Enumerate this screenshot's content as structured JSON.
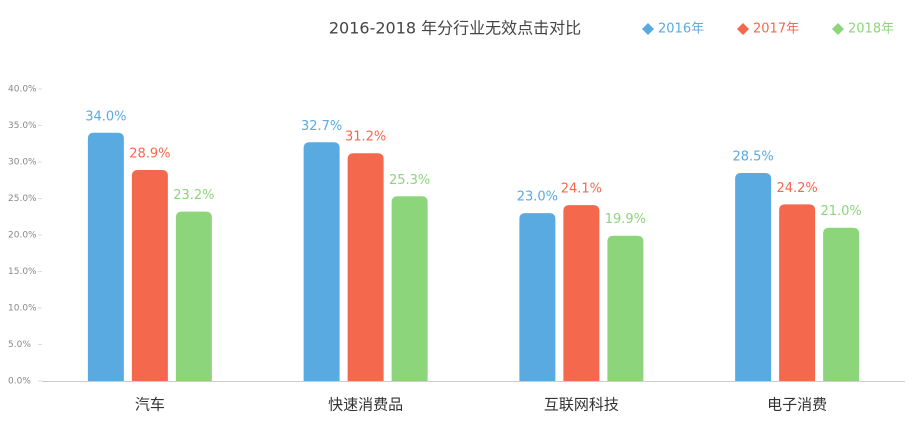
{
  "chart_data": {
    "type": "bar",
    "title": "2016-2018 年分行业无效点击对比",
    "categories": [
      "汽车",
      "快速消费品",
      "互联网科技",
      "电子消费"
    ],
    "series": [
      {
        "name": "2016年",
        "color": "#5aaae2",
        "values": [
          34.0,
          32.7,
          23.0,
          28.5
        ],
        "value_labels": [
          "34.0%",
          "32.7%",
          "23.0%",
          "28.5%"
        ]
      },
      {
        "name": "2017年",
        "color": "#f4694d",
        "values": [
          28.9,
          31.2,
          24.1,
          24.2
        ],
        "value_labels": [
          "28.9%",
          "31.2%",
          "24.1%",
          "24.2%"
        ]
      },
      {
        "name": "2018年",
        "color": "#8dd57a",
        "values": [
          23.2,
          25.3,
          19.9,
          21.0
        ],
        "value_labels": [
          "23.2%",
          "25.3%",
          "19.9%",
          "21.0%"
        ]
      }
    ],
    "ylim": [
      0,
      40
    ],
    "yticks": [
      {
        "value": 0,
        "label": "0.0%"
      },
      {
        "value": 5,
        "label": "5.0%"
      },
      {
        "value": 10,
        "label": "10.0%"
      },
      {
        "value": 15,
        "label": "15.0%"
      },
      {
        "value": 20,
        "label": "20.0%"
      },
      {
        "value": 25,
        "label": "25.0%"
      },
      {
        "value": 30,
        "label": "30.0%"
      },
      {
        "value": 35,
        "label": "35.0%"
      },
      {
        "value": 40,
        "label": "40.0%"
      }
    ],
    "legend": "top-right"
  }
}
